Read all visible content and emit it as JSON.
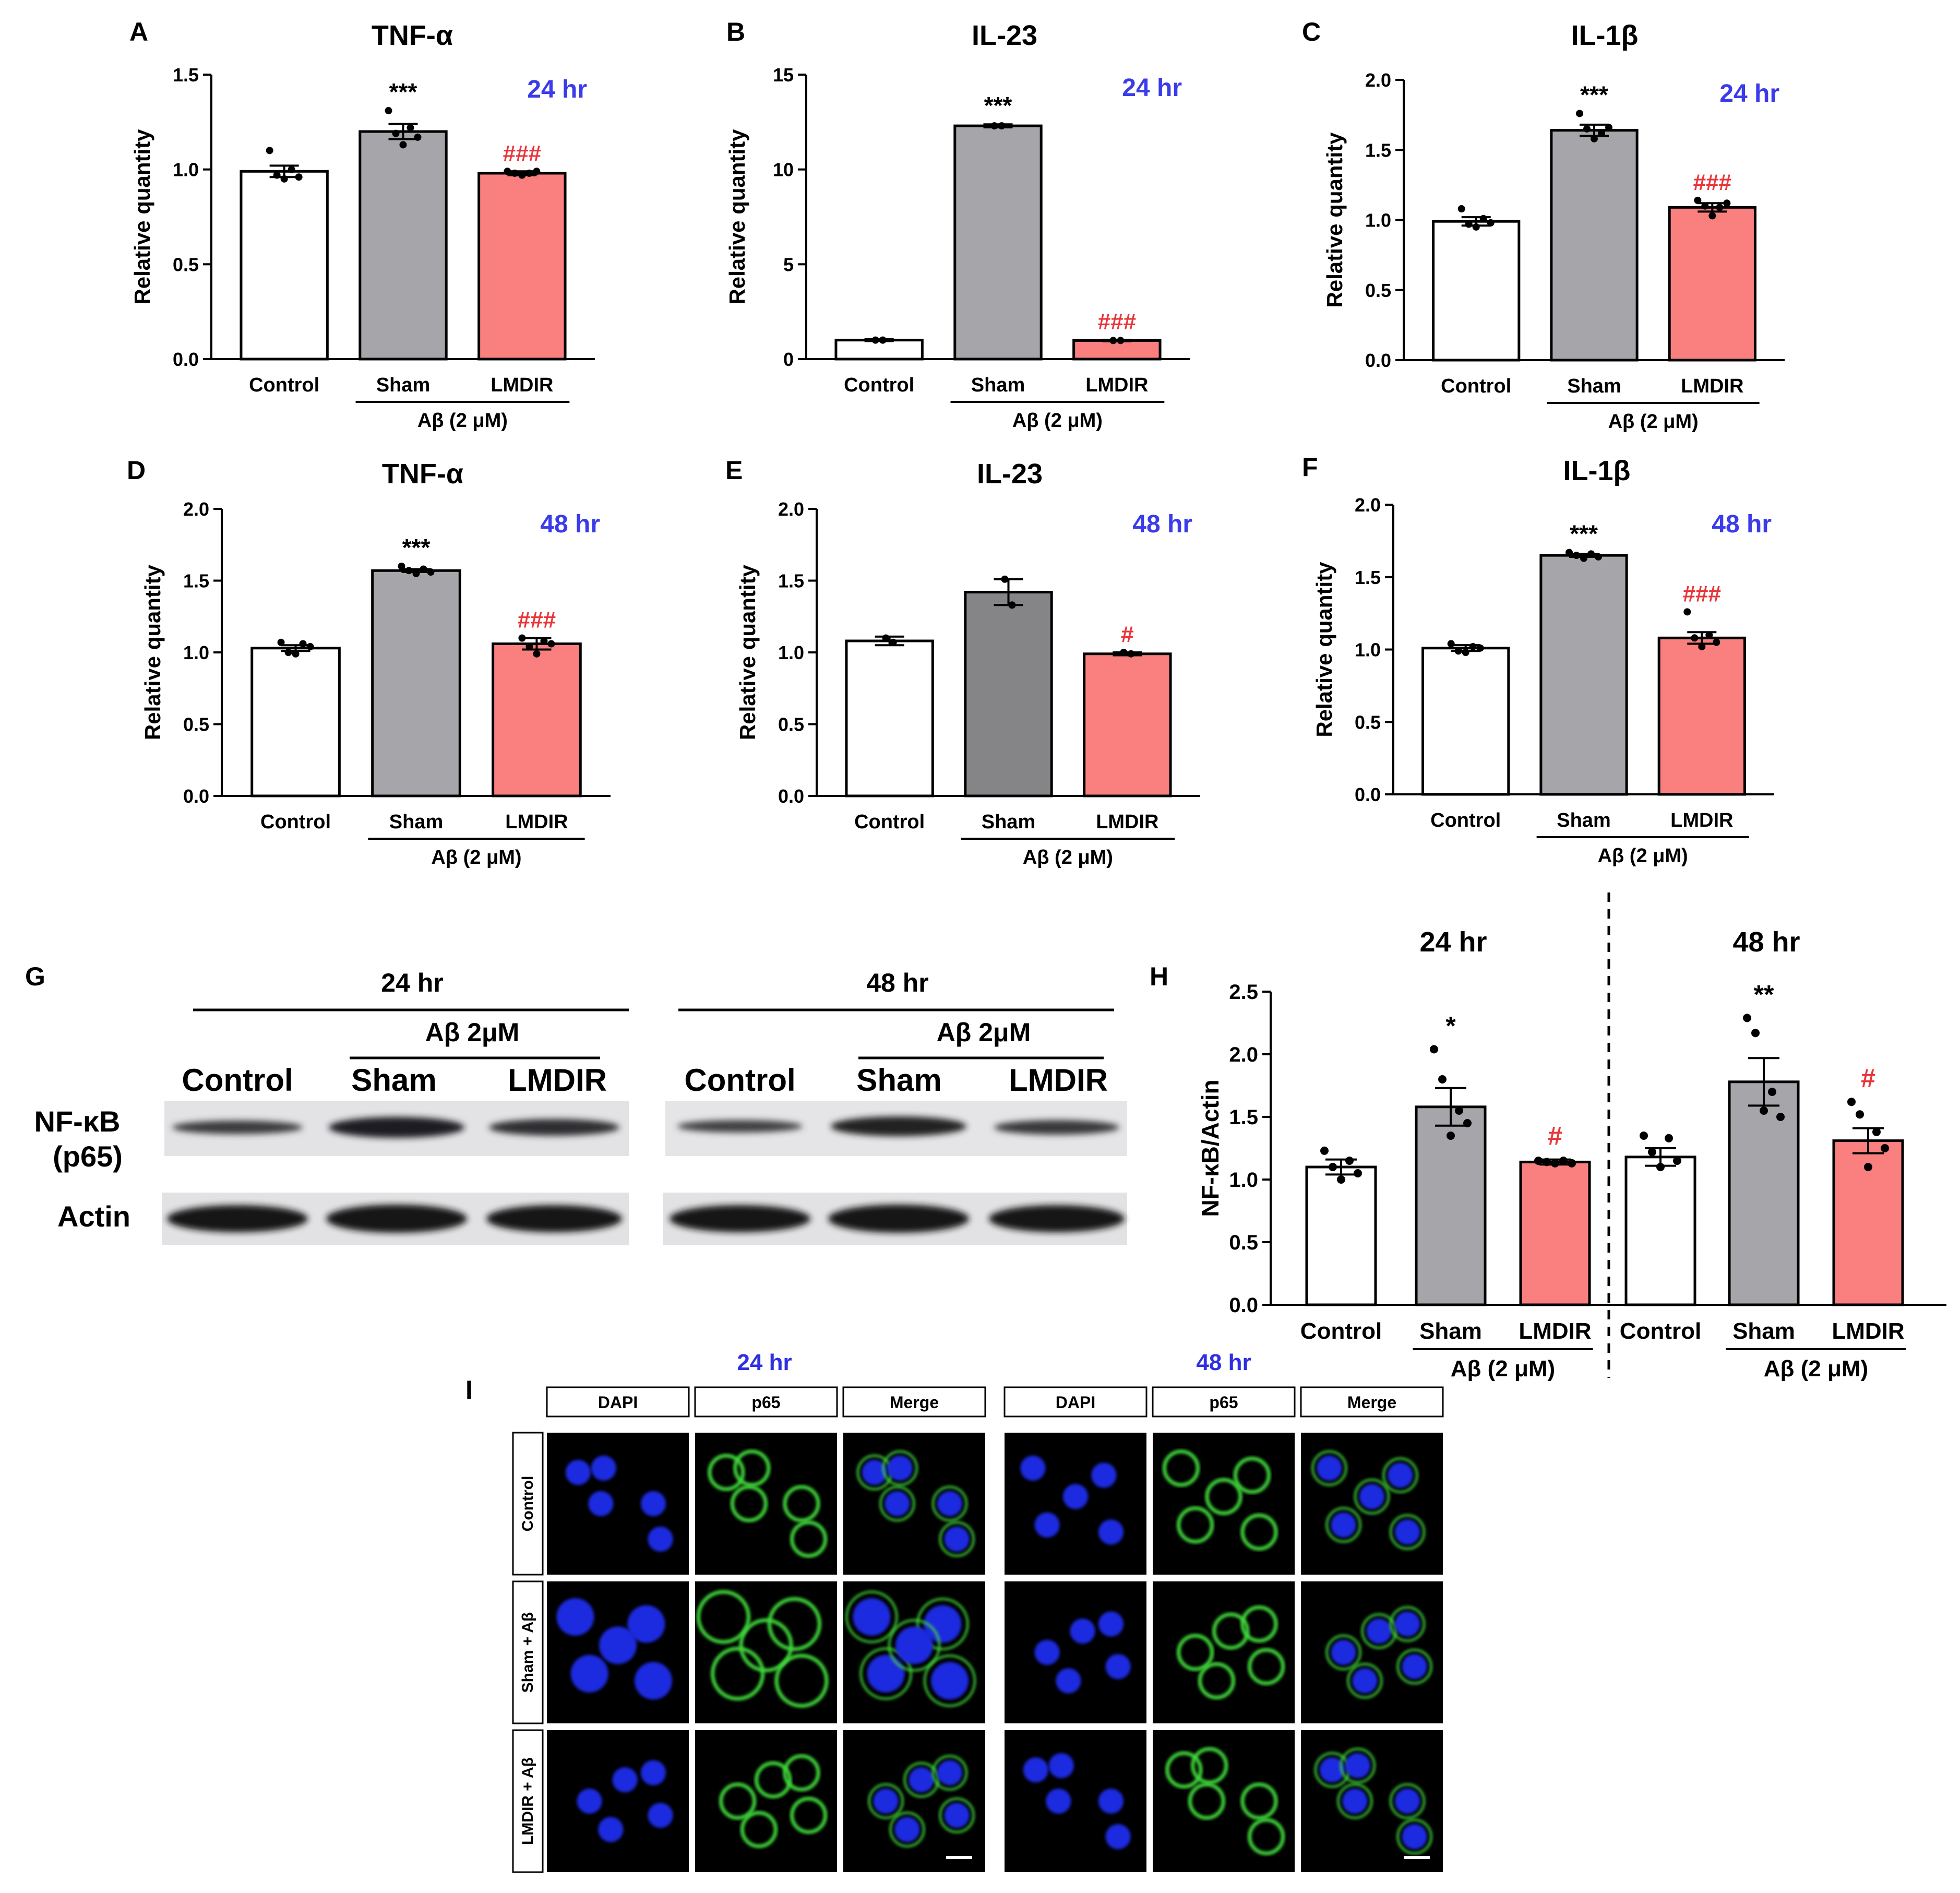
{
  "colors": {
    "control": "#ffffff",
    "sham": "#a6a6aa",
    "sham_dark": "#858588",
    "lmdir": "#fa8080",
    "blue_label": "#3b3bea",
    "red_mark": "#e8363a",
    "axis": "#000000"
  },
  "chart_data": [
    {
      "panel": "A",
      "type": "bar",
      "title": "TNF-α",
      "time": "24 hr",
      "ylabel": "Relative quantity",
      "ylim": [
        0,
        1.5
      ],
      "yticks": [
        "0.0",
        "0.5",
        "1.0",
        "1.5"
      ],
      "ytick_values": [
        0,
        0.5,
        1.0,
        1.5
      ],
      "categories": [
        "Control",
        "Sham",
        "LMDIR"
      ],
      "group_label": "Aβ (2 μM)",
      "values": [
        0.99,
        1.2,
        0.98
      ],
      "errors": [
        0.03,
        0.04,
        0.01
      ],
      "points": [
        [
          1.1,
          0.97,
          0.95,
          1.0,
          0.96
        ],
        [
          1.31,
          1.19,
          1.13,
          1.22,
          1.17
        ],
        [
          0.99,
          0.98,
          0.97,
          0.98,
          0.99
        ]
      ],
      "sig": [
        "",
        "***",
        "###"
      ]
    },
    {
      "panel": "B",
      "type": "bar",
      "title": "IL-23",
      "time": "24 hr",
      "ylabel": "Relative quantity",
      "ylim": [
        0,
        15
      ],
      "yticks": [
        "0",
        "5",
        "10",
        "15"
      ],
      "ytick_values": [
        0,
        5,
        10,
        15
      ],
      "categories": [
        "Control",
        "Sham",
        "LMDIR"
      ],
      "group_label": "Aβ (2 μM)",
      "values": [
        1.0,
        12.3,
        0.98
      ],
      "errors": [
        0.05,
        0.08,
        0.04
      ],
      "points": [
        [
          1.0,
          1.0
        ],
        [
          12.3,
          12.3
        ],
        [
          0.98,
          0.98
        ]
      ],
      "sig": [
        "",
        "***",
        "###"
      ]
    },
    {
      "panel": "C",
      "type": "bar",
      "title": "IL-1β",
      "time": "24 hr",
      "ylabel": "Relative quantity",
      "ylim": [
        0,
        2.0
      ],
      "yticks": [
        "0.0",
        "0.5",
        "1.0",
        "1.5",
        "2.0"
      ],
      "ytick_values": [
        0,
        0.5,
        1.0,
        1.5,
        2.0
      ],
      "categories": [
        "Control",
        "Sham",
        "LMDIR"
      ],
      "group_label": "Aβ (2 μM)",
      "values": [
        0.99,
        1.64,
        1.09
      ],
      "errors": [
        0.03,
        0.04,
        0.03
      ],
      "points": [
        [
          1.08,
          0.97,
          0.95,
          1.01,
          0.98
        ],
        [
          1.76,
          1.65,
          1.58,
          1.62,
          1.66
        ],
        [
          1.14,
          1.1,
          1.03,
          1.09,
          1.12
        ]
      ],
      "sig": [
        "",
        "***",
        "###"
      ]
    },
    {
      "panel": "D",
      "type": "bar",
      "title": "TNF-α",
      "time": "48 hr",
      "ylabel": "Relative quantity",
      "ylim": [
        0,
        2.0
      ],
      "yticks": [
        "0.0",
        "0.5",
        "1.0",
        "1.5",
        "2.0"
      ],
      "ytick_values": [
        0,
        0.5,
        1.0,
        1.5,
        2.0
      ],
      "categories": [
        "Control",
        "Sham",
        "LMDIR"
      ],
      "group_label": "Aβ (2 μM)",
      "values": [
        1.03,
        1.57,
        1.06
      ],
      "errors": [
        0.02,
        0.01,
        0.04
      ],
      "points": [
        [
          1.07,
          1.0,
          0.99,
          1.06,
          1.04
        ],
        [
          1.6,
          1.57,
          1.55,
          1.58,
          1.56
        ],
        [
          1.1,
          1.04,
          0.99,
          1.08,
          1.06
        ]
      ],
      "sig": [
        "",
        "***",
        "###"
      ]
    },
    {
      "panel": "E",
      "type": "bar",
      "title": "IL-23",
      "time": "48 hr",
      "ylabel": "Relative quantity",
      "ylim": [
        0,
        2.0
      ],
      "yticks": [
        "0.0",
        "0.5",
        "1.0",
        "1.5",
        "2.0"
      ],
      "ytick_values": [
        0,
        0.5,
        1.0,
        1.5,
        2.0
      ],
      "categories": [
        "Control",
        "Sham",
        "LMDIR"
      ],
      "group_label": "Aβ (2 μM)",
      "values": [
        1.08,
        1.42,
        0.99
      ],
      "errors": [
        0.03,
        0.09,
        0.01
      ],
      "points": [
        [
          1.1,
          1.07
        ],
        [
          1.51,
          1.33
        ],
        [
          1.0,
          0.99
        ]
      ],
      "sig": [
        "",
        "",
        "#"
      ],
      "dark_sham": true
    },
    {
      "panel": "F",
      "type": "bar",
      "title": "IL-1β",
      "time": "48 hr",
      "ylabel": "Relative quantity",
      "ylim": [
        0,
        2.0
      ],
      "yticks": [
        "0.0",
        "0.5",
        "1.0",
        "1.5",
        "2.0"
      ],
      "ytick_values": [
        0,
        0.5,
        1.0,
        1.5,
        2.0
      ],
      "categories": [
        "Control",
        "Sham",
        "LMDIR"
      ],
      "group_label": "Aβ (2 μM)",
      "values": [
        1.01,
        1.65,
        1.08
      ],
      "errors": [
        0.02,
        0.01,
        0.04
      ],
      "points": [
        [
          1.04,
          0.99,
          0.98,
          1.02,
          1.01
        ],
        [
          1.67,
          1.65,
          1.63,
          1.66,
          1.64
        ],
        [
          1.26,
          1.08,
          1.02,
          1.1,
          1.05
        ]
      ],
      "sig": [
        "",
        "***",
        "###"
      ]
    },
    {
      "panel": "H",
      "type": "bar",
      "title_24": "24 hr",
      "title_48": "48 hr",
      "ylabel": "NF-κB/Actin",
      "ylim": [
        0,
        2.5
      ],
      "yticks": [
        "0.0",
        "0.5",
        "1.0",
        "1.5",
        "2.0",
        "2.5"
      ],
      "ytick_values": [
        0,
        0.5,
        1.0,
        1.5,
        2.0,
        2.5
      ],
      "categories": [
        "Control",
        "Sham",
        "LMDIR",
        "Control",
        "Sham",
        "LMDIR"
      ],
      "group_label": "Aβ (2 μM)",
      "values": [
        1.1,
        1.58,
        1.14,
        1.18,
        1.78,
        1.31
      ],
      "errors": [
        0.06,
        0.15,
        0.02,
        0.07,
        0.19,
        0.1
      ],
      "points": [
        [
          1.23,
          1.1,
          1.0,
          1.15,
          1.05
        ],
        [
          2.04,
          1.8,
          1.35,
          1.55,
          1.45
        ],
        [
          1.15,
          1.14,
          1.13,
          1.15,
          1.13
        ],
        [
          1.35,
          1.22,
          1.1,
          1.33,
          1.15
        ],
        [
          2.29,
          2.17,
          1.55,
          1.7,
          1.5
        ],
        [
          1.62,
          1.52,
          1.1,
          1.38,
          1.25
        ]
      ],
      "sig": [
        "",
        "*",
        "#",
        "",
        "**",
        "#"
      ]
    }
  ],
  "panel_labels": {
    "A": "A",
    "B": "B",
    "C": "C",
    "D": "D",
    "E": "E",
    "F": "F",
    "G": "G",
    "H": "H",
    "I": "I"
  },
  "blot": {
    "left_title": "24 hr",
    "right_title": "48 hr",
    "abeta": "Aβ 2μM",
    "lanes": [
      "Control",
      "Sham",
      "LMDIR"
    ],
    "row1_label_a": "NF-κB",
    "row1_label_b": "(p65)",
    "row2_label": "Actin"
  },
  "imaging": {
    "time_24": "24 hr",
    "time_48": "48 hr",
    "columns": [
      "DAPI",
      "p65",
      "Merge"
    ],
    "rows": [
      "Control",
      "Sham + Aβ",
      "LMDIR + Aβ"
    ]
  }
}
